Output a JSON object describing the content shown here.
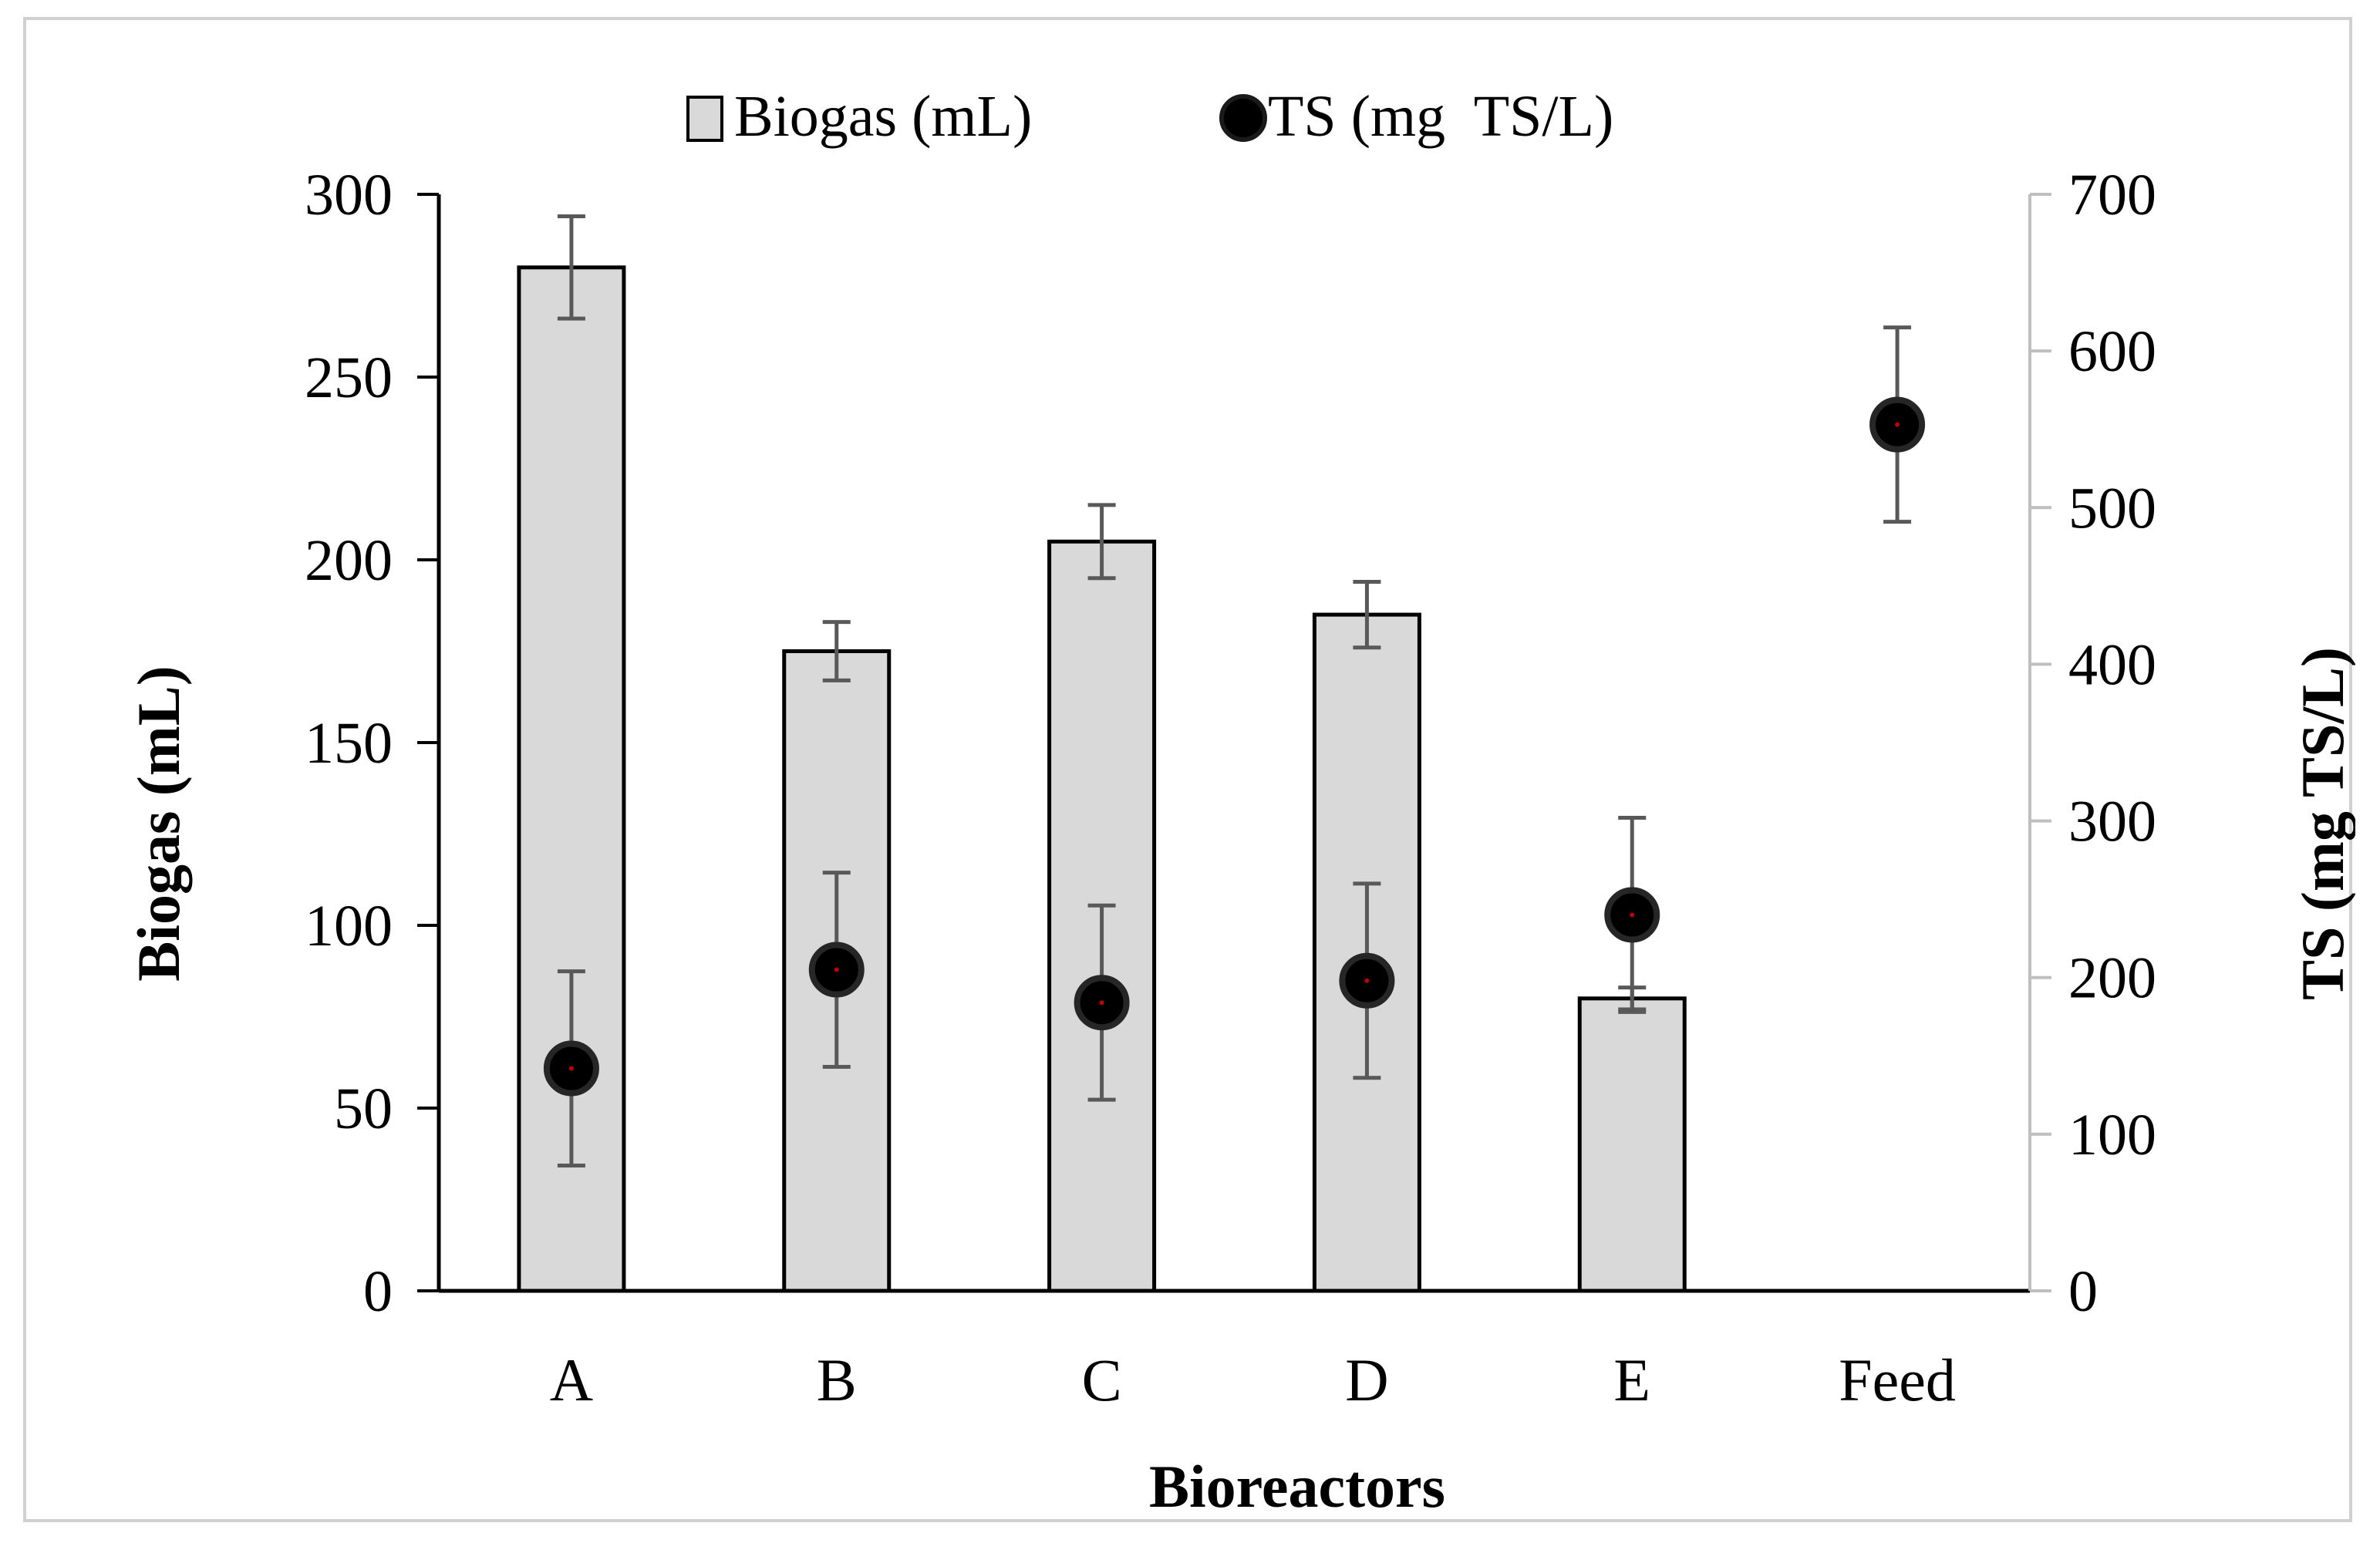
{
  "chart_data": {
    "type": "bar",
    "categories": [
      "A",
      "B",
      "C",
      "D",
      "E",
      "Feed"
    ],
    "xlabel": "Bioreactors",
    "ylabel": "Biogas (mL)",
    "y2label": "TS (mg TS/L)",
    "ylim": [
      0,
      300
    ],
    "y2lim": [
      0,
      700
    ],
    "yticks": [
      0,
      50,
      100,
      150,
      200,
      250,
      300
    ],
    "y2ticks": [
      0,
      100,
      200,
      300,
      400,
      500,
      600,
      700
    ],
    "legend_position": "top",
    "grid": false,
    "series": [
      {
        "name": "Biogas (mL)",
        "kind": "bar",
        "axis": "left",
        "legend_label": "Biogas (mL)",
        "values": [
          280,
          175,
          205,
          185,
          80,
          null
        ],
        "errors": [
          14,
          8,
          10,
          9,
          3,
          null
        ]
      },
      {
        "name": "TS (mg TS/L)",
        "kind": "scatter",
        "axis": "right",
        "legend_label": "TS (mg  TS/L)",
        "values": [
          142,
          205,
          184,
          198,
          240,
          553
        ],
        "errors": [
          62,
          62,
          62,
          62,
          62,
          62
        ]
      }
    ]
  },
  "colors": {
    "bar_fill": "#d9d9d9",
    "bar_stroke": "#000000",
    "marker_fill": "#000000",
    "marker_center": "#c00000",
    "error_bar": "#595959",
    "left_axis": "#000000",
    "right_axis": "#bfbfbf"
  }
}
